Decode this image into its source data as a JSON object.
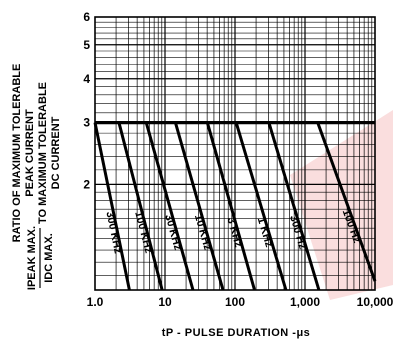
{
  "chart_data": {
    "type": "line",
    "xscale": "log",
    "yscale": "log",
    "xlim": [
      1,
      10000
    ],
    "ylim": [
      1,
      6
    ],
    "xlabel": "tP - PULSE DURATION -μs",
    "ylabel_lines": [
      "RATIO OF MAXIMUM TOLERABLE",
      "PEAK CURRENT",
      "TO MAXIMUM TOLERABLE",
      "DC CURRENT"
    ],
    "ratio_label": {
      "numerator": "IPEAK MAX.",
      "denominator": "IDC MAX."
    },
    "x_ticks": [
      {
        "value": 1,
        "label": "1.0"
      },
      {
        "value": 10,
        "label": "10"
      },
      {
        "value": 100,
        "label": "100"
      },
      {
        "value": 1000,
        "label": "1,000"
      },
      {
        "value": 10000,
        "label": "10,000"
      }
    ],
    "y_ticks": [
      {
        "value": 2,
        "label": "2"
      },
      {
        "value": 3,
        "label": "3"
      },
      {
        "value": 4,
        "label": "4"
      },
      {
        "value": 5,
        "label": "5"
      },
      {
        "value": 6,
        "label": "6"
      }
    ],
    "plateau": 3,
    "grid": true,
    "series": [
      {
        "name": "300 KHz",
        "points": [
          [
            1,
            3
          ],
          [
            3.1,
            1
          ]
        ]
      },
      {
        "name": "100 KHz",
        "points": [
          [
            2.2,
            3
          ],
          [
            9.1,
            1
          ]
        ]
      },
      {
        "name": "30 KHz",
        "points": [
          [
            5.4,
            3
          ],
          [
            25.1,
            1
          ]
        ]
      },
      {
        "name": "10 KHz",
        "points": [
          [
            14.1,
            3
          ],
          [
            67.4,
            1
          ]
        ]
      },
      {
        "name": "3 KHz",
        "points": [
          [
            40.3,
            3
          ],
          [
            190,
            1
          ]
        ]
      },
      {
        "name": "1 KHz",
        "points": [
          [
            104,
            3
          ],
          [
            534,
            1
          ]
        ]
      },
      {
        "name": "300 Hz",
        "points": [
          [
            305,
            3
          ],
          [
            1580,
            1
          ]
        ]
      },
      {
        "name": "100 Hz",
        "points": [
          [
            1520,
            3
          ],
          [
            10000,
            1.06
          ]
        ]
      }
    ]
  }
}
